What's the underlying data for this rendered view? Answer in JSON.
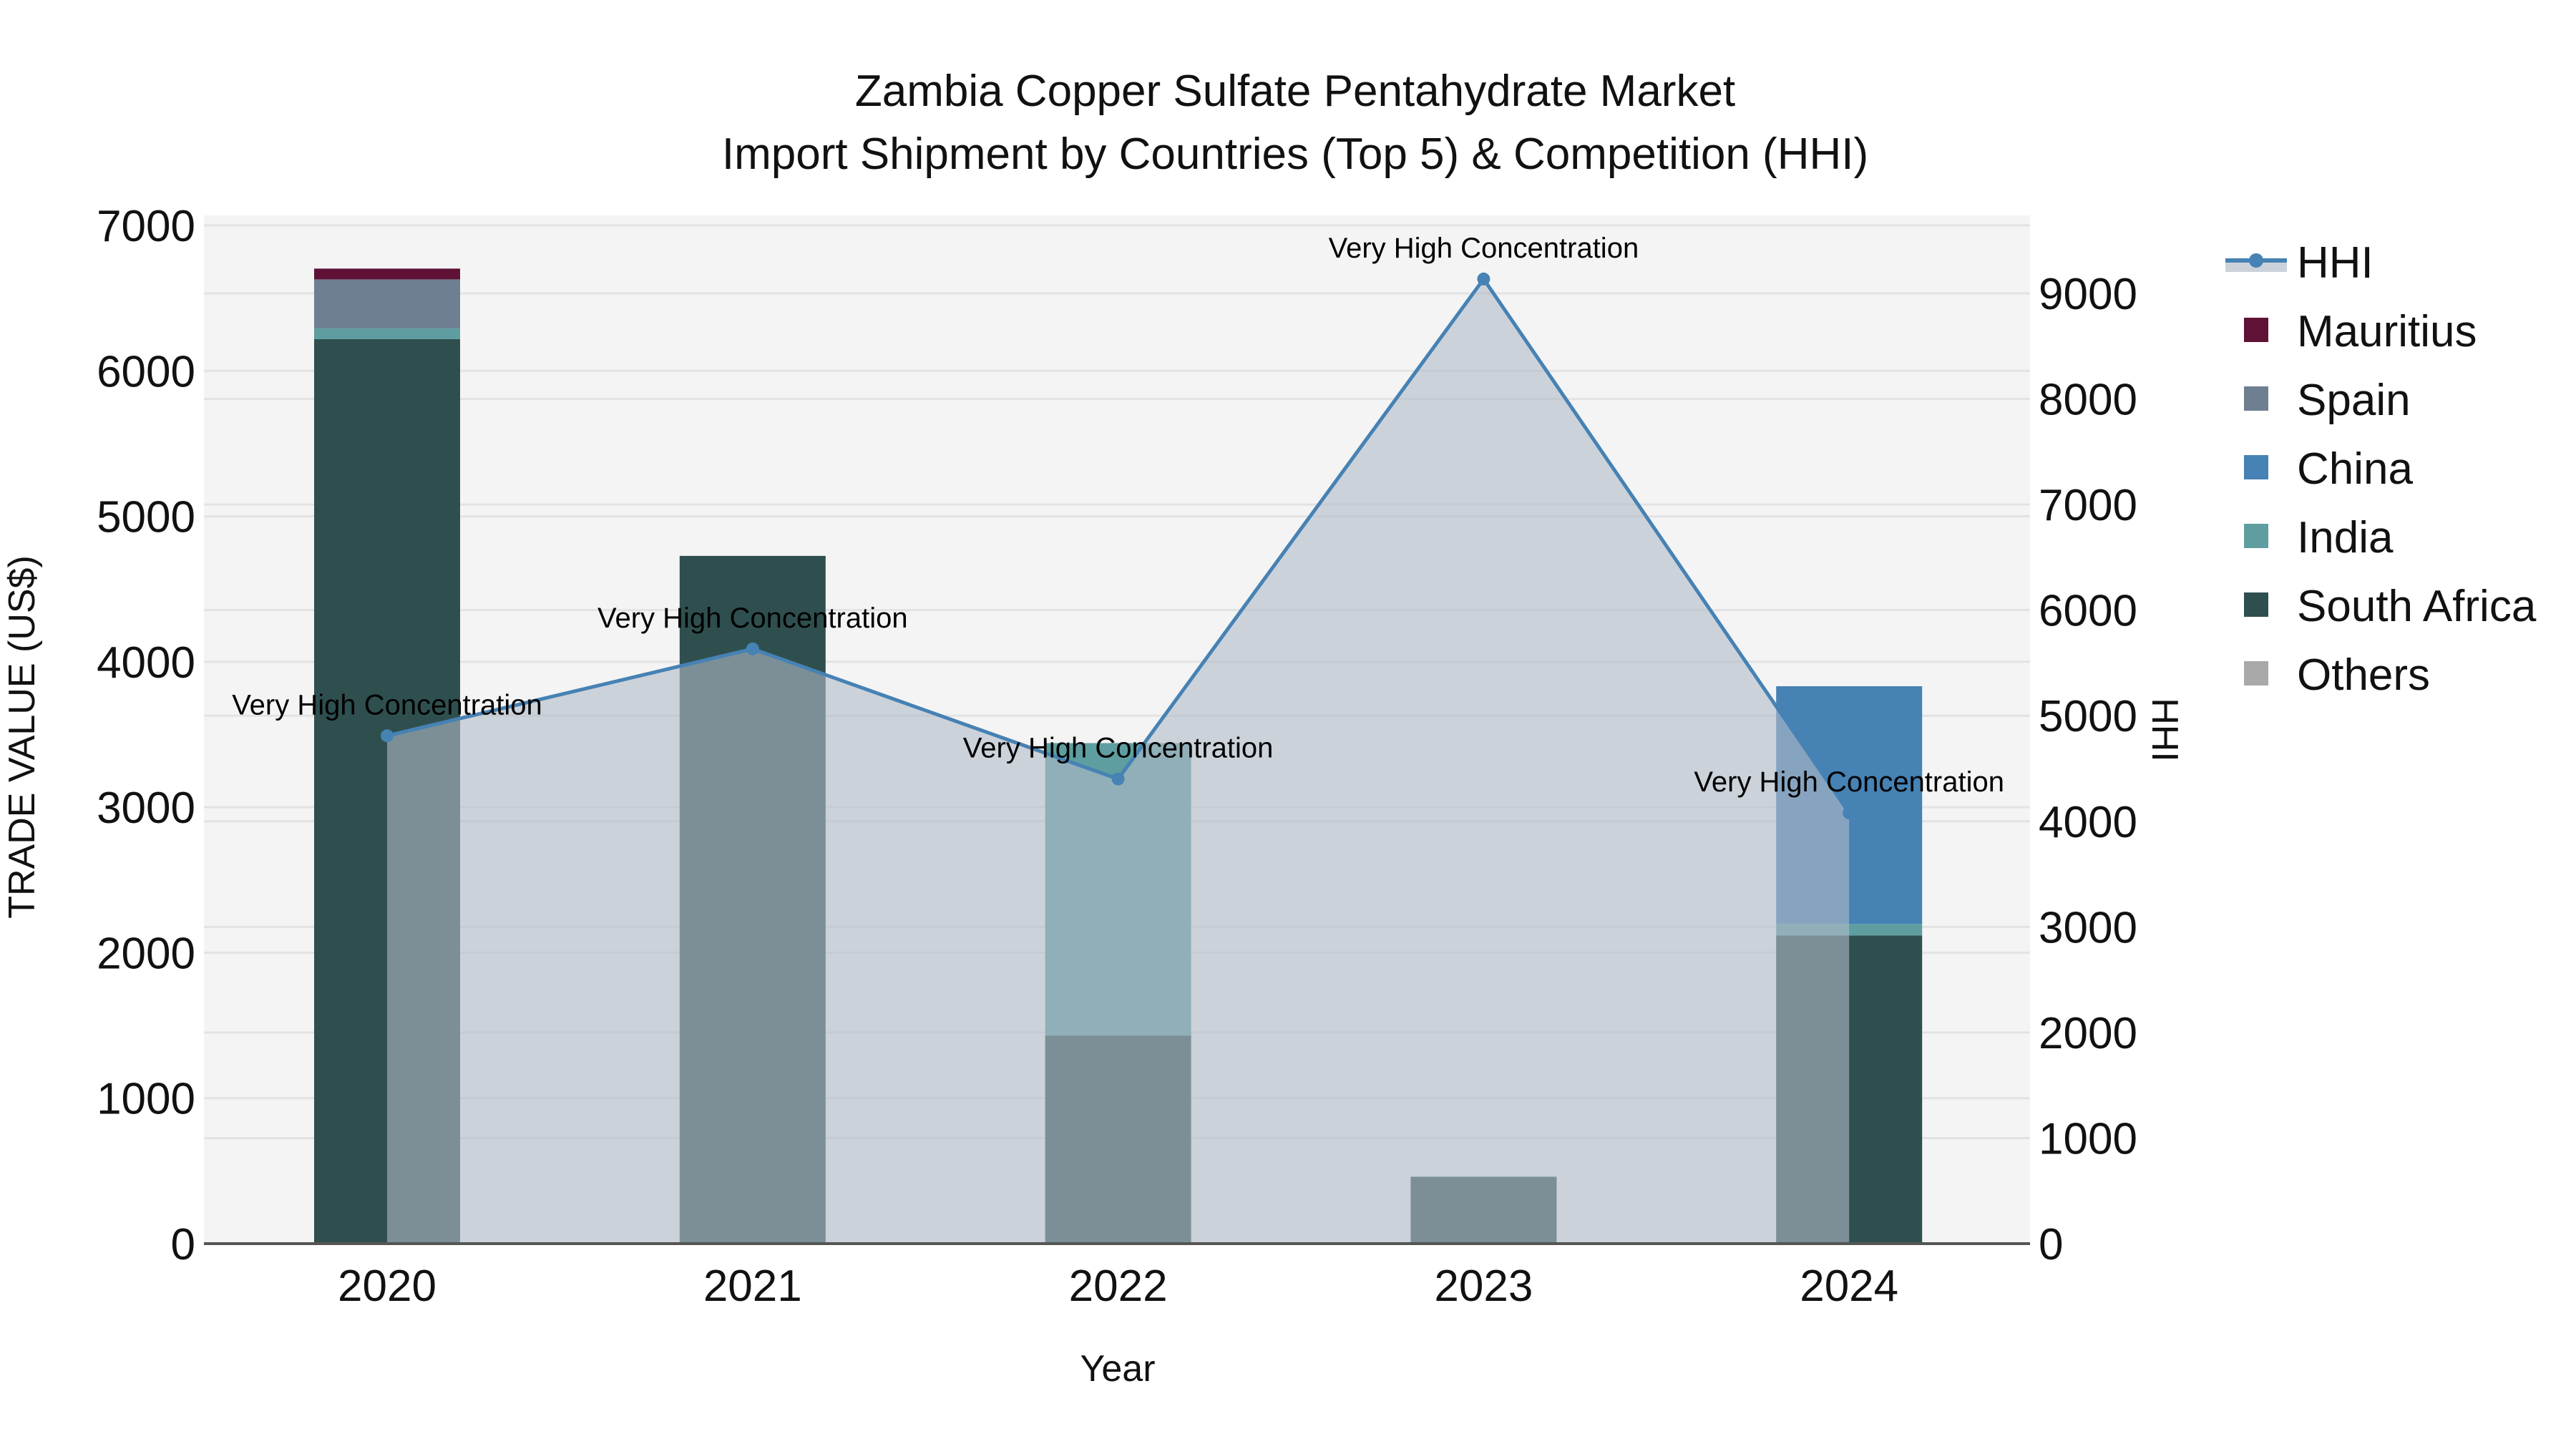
{
  "title": {
    "line1": "Zambia Copper Sulfate Pentahydrate Market",
    "line2": "Import Shipment by Countries (Top 5) & Competition (HHI)"
  },
  "axes": {
    "x_title": "Year",
    "y_left_title": "TRADE VALUE (US$)",
    "y_right_title": "HHI",
    "y_left_ticks": [
      "0",
      "1000",
      "2000",
      "3000",
      "4000",
      "5000",
      "6000",
      "7000"
    ],
    "y_right_ticks": [
      "0",
      "1000",
      "2000",
      "3000",
      "4000",
      "5000",
      "6000",
      "7000",
      "8000",
      "9000"
    ],
    "x_ticks": [
      "2020",
      "2021",
      "2022",
      "2023",
      "2024"
    ]
  },
  "legend": {
    "items": [
      {
        "label": "HHI",
        "color": "#4682b4",
        "type": "line"
      },
      {
        "label": "Mauritius",
        "color": "#5f1236",
        "type": "box"
      },
      {
        "label": "Spain",
        "color": "#6e7f91",
        "type": "box"
      },
      {
        "label": "China",
        "color": "#4682b4",
        "type": "box"
      },
      {
        "label": "India",
        "color": "#5f9ea0",
        "type": "box"
      },
      {
        "label": "South Africa",
        "color": "#2f4f4f",
        "type": "box"
      },
      {
        "label": "Others",
        "color": "#a9a9a9",
        "type": "box"
      }
    ]
  },
  "annotations": [
    {
      "year": "2020",
      "text": "Very High Concentration"
    },
    {
      "year": "2021",
      "text": "Very High Concentration"
    },
    {
      "year": "2022",
      "text": "Very High Concentration"
    },
    {
      "year": "2023",
      "text": "Very High Concentration"
    },
    {
      "year": "2024",
      "text": "Very High Concentration"
    }
  ],
  "colors": {
    "plot_bg": "#f4f4f4",
    "grid": "#e3e3e3",
    "hhi_line": "#4682b4",
    "hhi_fill": "rgba(176,186,200,0.6)"
  },
  "chart_data": {
    "type": "bar",
    "stacked": true,
    "title": "Zambia Copper Sulfate Pentahydrate Market — Import Shipment by Countries (Top 5) & Competition (HHI)",
    "xlabel": "Year",
    "ylabel": "TRADE VALUE (US$)",
    "y2label": "HHI",
    "categories": [
      "2020",
      "2021",
      "2022",
      "2023",
      "2024"
    ],
    "ylim": [
      0,
      7000
    ],
    "y2lim": [
      0,
      9700
    ],
    "grid": true,
    "legend_position": "right",
    "series": [
      {
        "name": "South Africa",
        "color": "#2f4f4f",
        "values": [
          6218,
          4728,
          1431,
          460,
          2119
        ]
      },
      {
        "name": "India",
        "color": "#5f9ea0",
        "values": [
          74,
          0,
          2010,
          0,
          79
        ]
      },
      {
        "name": "China",
        "color": "#4682b4",
        "values": [
          0,
          0,
          0,
          0,
          1634
        ]
      },
      {
        "name": "Spain",
        "color": "#6e7f91",
        "values": [
          337,
          0,
          0,
          0,
          0
        ]
      },
      {
        "name": "Mauritius",
        "color": "#5f1236",
        "values": [
          74,
          0,
          0,
          0,
          0
        ]
      },
      {
        "name": "Others",
        "color": "#a9a9a9",
        "values": [
          0,
          0,
          0,
          0,
          0
        ]
      }
    ],
    "line_series": [
      {
        "name": "HHI",
        "axis": "right",
        "type": "line+area",
        "color": "#4682b4",
        "values": [
          4810,
          5633,
          4401,
          9136,
          4080
        ]
      }
    ]
  }
}
